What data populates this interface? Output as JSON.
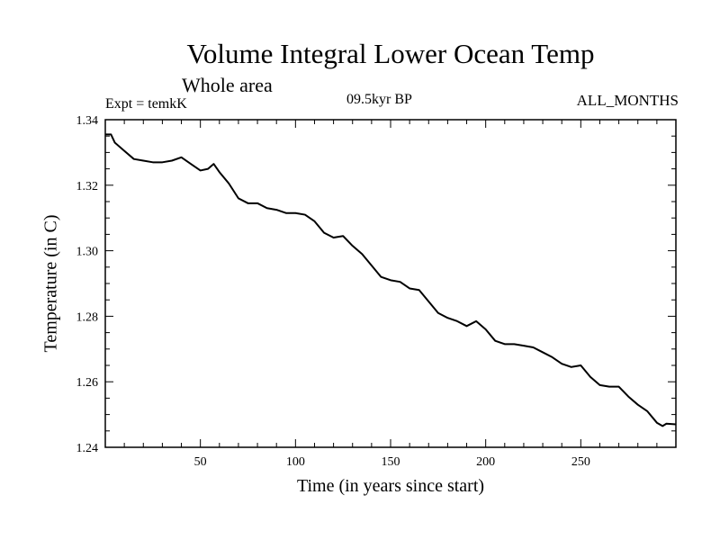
{
  "chart_data": {
    "type": "line",
    "title": "Volume Integral Lower Ocean Temp",
    "subtitle": "Whole area",
    "annotations": {
      "left": "Expt = temkK",
      "center": "09.5kyr BP",
      "right": "ALL_MONTHS"
    },
    "xlabel": "Time (in years since start)",
    "ylabel": "Temperature (in C)",
    "xlim": [
      0,
      300
    ],
    "ylim": [
      1.24,
      1.34
    ],
    "xticks": [
      50,
      100,
      150,
      200,
      250
    ],
    "yticks": [
      1.24,
      1.26,
      1.28,
      1.3,
      1.32,
      1.34
    ],
    "ytick_labels": [
      "1.24",
      "1.26",
      "1.28",
      "1.30",
      "1.32",
      "1.34"
    ],
    "grid": false,
    "series": [
      {
        "name": "Temperature",
        "x": [
          0,
          3,
          5,
          10,
          15,
          20,
          25,
          30,
          35,
          40,
          45,
          50,
          54,
          57,
          60,
          65,
          70,
          75,
          80,
          85,
          90,
          95,
          100,
          105,
          110,
          115,
          120,
          125,
          130,
          135,
          140,
          145,
          150,
          155,
          160,
          165,
          170,
          175,
          180,
          185,
          190,
          195,
          200,
          205,
          210,
          215,
          220,
          225,
          230,
          235,
          240,
          245,
          250,
          255,
          260,
          265,
          270,
          275,
          280,
          285,
          290,
          293,
          295,
          300
        ],
        "values": [
          1.3355,
          1.3355,
          1.333,
          1.3305,
          1.328,
          1.3275,
          1.327,
          1.327,
          1.3275,
          1.3285,
          1.3265,
          1.3245,
          1.325,
          1.3265,
          1.324,
          1.3205,
          1.316,
          1.3145,
          1.3145,
          1.313,
          1.3125,
          1.3115,
          1.3115,
          1.311,
          1.309,
          1.3055,
          1.304,
          1.3045,
          1.3015,
          1.299,
          1.2955,
          1.292,
          1.291,
          1.2905,
          1.2885,
          1.288,
          1.2845,
          1.281,
          1.2795,
          1.2785,
          1.277,
          1.2785,
          1.276,
          1.2725,
          1.2715,
          1.2715,
          1.271,
          1.2705,
          1.269,
          1.2675,
          1.2655,
          1.2645,
          1.265,
          1.2615,
          1.259,
          1.2585,
          1.2585,
          1.2555,
          1.253,
          1.251,
          1.2475,
          1.2465,
          1.2472,
          1.247
        ]
      }
    ]
  }
}
